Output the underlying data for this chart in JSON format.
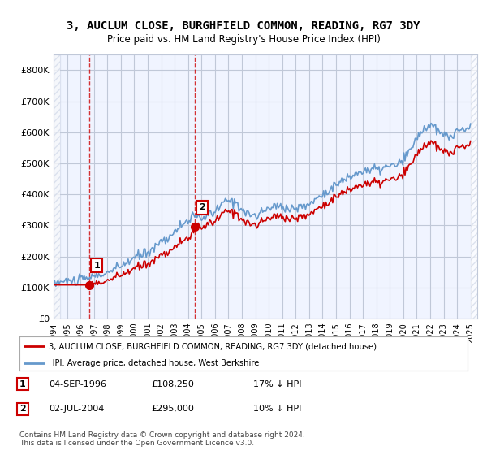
{
  "title": "3, AUCLUM CLOSE, BURGHFIELD COMMON, READING, RG7 3DY",
  "subtitle": "Price paid vs. HM Land Registry's House Price Index (HPI)",
  "ylabel": "",
  "ylim": [
    0,
    850000
  ],
  "yticks": [
    0,
    100000,
    200000,
    300000,
    400000,
    500000,
    600000,
    700000,
    800000
  ],
  "ytick_labels": [
    "£0",
    "£100K",
    "£200K",
    "£300K",
    "£400K",
    "£500K",
    "£600K",
    "£700K",
    "£800K"
  ],
  "xlim_start": 1994.0,
  "xlim_end": 2025.5,
  "hpi_color": "#6699cc",
  "price_color": "#cc0000",
  "marker_color": "#cc0000",
  "sale1_x": 1996.67,
  "sale1_y": 108250,
  "sale1_label": "1",
  "sale2_x": 2004.5,
  "sale2_y": 295000,
  "sale2_label": "2",
  "legend_line1": "3, AUCLUM CLOSE, BURGHFIELD COMMON, READING, RG7 3DY (detached house)",
  "legend_line2": "HPI: Average price, detached house, West Berkshire",
  "annotation1_num": "1",
  "annotation1_date": "04-SEP-1996",
  "annotation1_price": "£108,250",
  "annotation1_hpi": "17% ↓ HPI",
  "annotation2_num": "2",
  "annotation2_date": "02-JUL-2004",
  "annotation2_price": "£295,000",
  "annotation2_hpi": "10% ↓ HPI",
  "footer": "Contains HM Land Registry data © Crown copyright and database right 2024.\nThis data is licensed under the Open Government Licence v3.0.",
  "background_color": "#ffffff",
  "plot_bg_color": "#f0f4ff",
  "hatch_color": "#d0d8e8",
  "grid_color": "#c0c8d8"
}
